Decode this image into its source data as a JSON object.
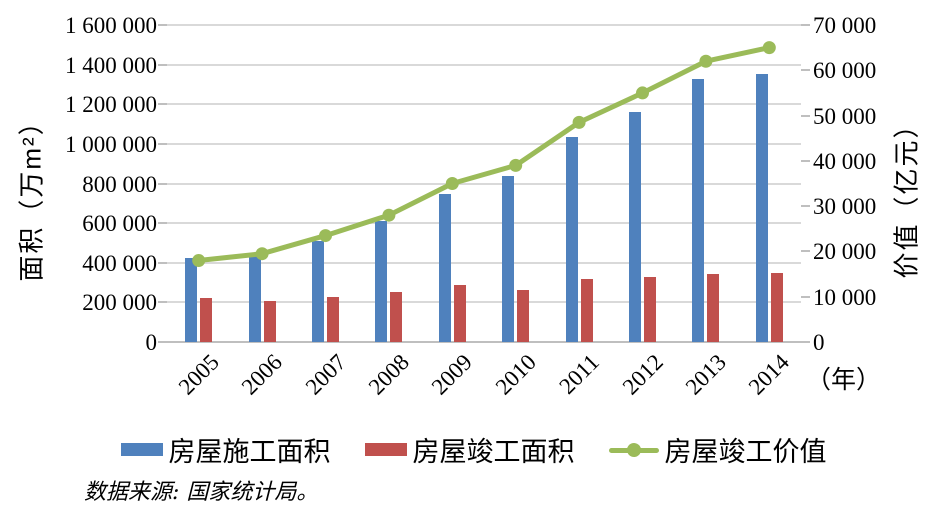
{
  "chart_data": {
    "type": "bar",
    "subtype": "grouped-bars-with-secondary-axis-line",
    "categories": [
      "2005",
      "2006",
      "2007",
      "2008",
      "2009",
      "2010",
      "2011",
      "2012",
      "2013",
      "2014"
    ],
    "series": [
      {
        "name": "房屋施工面积",
        "type": "bar",
        "axis": "left",
        "color": "#4f81bd",
        "values": [
          425000,
          435000,
          510000,
          610000,
          745000,
          840000,
          1035000,
          1160000,
          1330000,
          1355000
        ]
      },
      {
        "name": "房屋竣工面积",
        "type": "bar",
        "axis": "left",
        "color": "#c0504d",
        "values": [
          220000,
          205000,
          225000,
          250000,
          290000,
          265000,
          320000,
          330000,
          345000,
          350000
        ]
      },
      {
        "name": "房屋竣工价值",
        "type": "line",
        "axis": "right",
        "color": "#9bbb59",
        "values": [
          18000,
          19500,
          23500,
          28000,
          35000,
          39000,
          48500,
          55000,
          62000,
          65000
        ]
      }
    ],
    "left_axis": {
      "title": "面积（万m²）",
      "min": 0,
      "max": 1600000,
      "step": 200000,
      "tick_labels": [
        "0",
        "200 000",
        "400 000",
        "600 000",
        "800 000",
        "1 000 000",
        "1 200 000",
        "1 400 000",
        "1 600 000"
      ]
    },
    "right_axis": {
      "title": "价值（亿元）",
      "min": 0,
      "max": 70000,
      "step": 10000,
      "tick_labels": [
        "0",
        "10 000",
        "20 000",
        "30 000",
        "40 000",
        "50 000",
        "60 000",
        "70 000"
      ]
    },
    "x_axis": {
      "unit_label": "（年）"
    },
    "legend_position": "bottom",
    "grid": true,
    "source_note": "数据来源: 国家统计局。",
    "colors": {
      "bar_construction": "#4f81bd",
      "bar_completed": "#c0504d",
      "line_value": "#9bbb59",
      "gridline": "#d9d9d9",
      "axisline": "#bfbfbf",
      "text": "#000000"
    }
  }
}
